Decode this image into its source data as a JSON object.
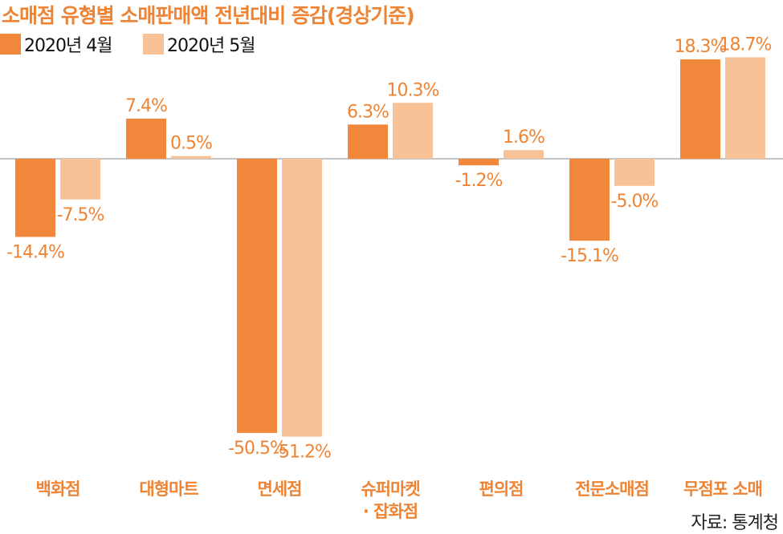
{
  "title": "소매점 유형별 소매판매액 전년대비 증감(경상기준)",
  "source": "자료: 통계청",
  "colors": {
    "accent": "#ee8433",
    "series1": "#f0873a",
    "series2": "#f7c298",
    "label": "#ee8433",
    "axis": "#888888"
  },
  "chart_data": {
    "type": "bar",
    "title": "소매점 유형별 소매판매액 전년대비 증감(경상기준)",
    "categories": [
      "백화점",
      "대형마트",
      "면세점",
      "슈퍼마켓 · 잡화점",
      "편의점",
      "전문소매점",
      "무점포 소매"
    ],
    "category_lines": [
      [
        "백화점"
      ],
      [
        "대형마트"
      ],
      [
        "면세점"
      ],
      [
        "슈퍼마켓",
        "· 잡화점"
      ],
      [
        "편의점"
      ],
      [
        "전문소매점"
      ],
      [
        "무점포 소매"
      ]
    ],
    "series": [
      {
        "name": "2020년 4월",
        "values": [
          -14.4,
          7.4,
          -50.5,
          6.3,
          -1.2,
          -15.1,
          18.3
        ],
        "labels": [
          "-14.4%",
          "7.4%",
          "-50.5%",
          "6.3%",
          "-1.2%",
          "-15.1%",
          "18.3%"
        ]
      },
      {
        "name": "2020년 5월",
        "values": [
          -7.5,
          0.5,
          -51.2,
          10.3,
          1.6,
          -5.0,
          18.7
        ],
        "labels": [
          "-7.5%",
          "0.5%",
          "-51.2%",
          "10.3%",
          "1.6%",
          "-5.0%",
          "18.7%"
        ]
      }
    ],
    "unit": "%",
    "ylim": [
      -51.2,
      18.7
    ],
    "legend_position": "top-left",
    "grid": false
  }
}
